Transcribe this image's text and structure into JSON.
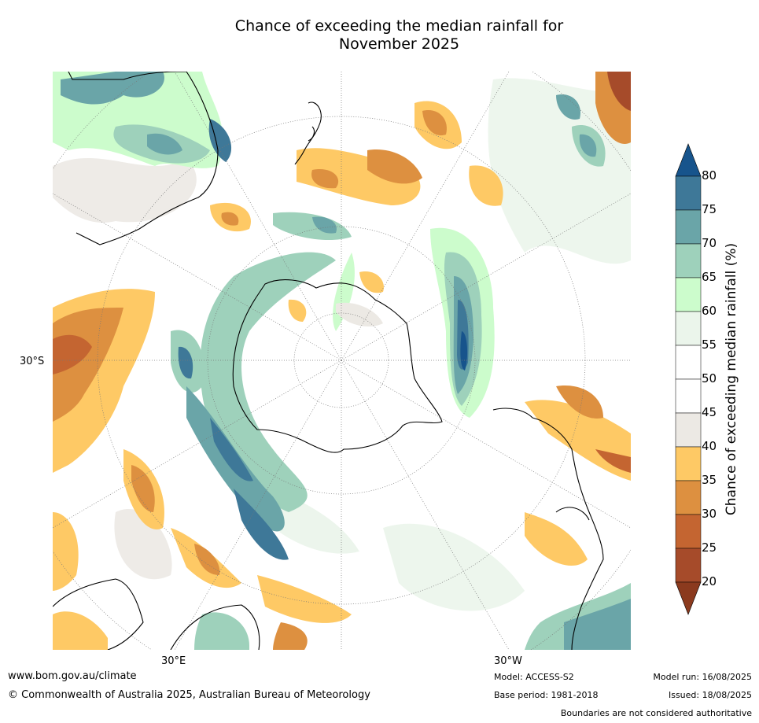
{
  "title_line1": "Chance of exceeding the median rainfall for",
  "title_line2": "November 2025",
  "axis": {
    "lat_label": "30°S",
    "lon_label_east": "30°E",
    "lon_label_west": "30°W"
  },
  "colorbar": {
    "label": "Chance of exceeding median rainfall (%)",
    "ticks": [
      "80",
      "75",
      "70",
      "65",
      "60",
      "55",
      "50",
      "45",
      "40",
      "35",
      "30",
      "25",
      "20"
    ],
    "bins": [
      {
        "range": "75-80",
        "color": "#3e7898"
      },
      {
        "range": "70-75",
        "color": "#6aa5a8"
      },
      {
        "range": "65-70",
        "color": "#9ed1bb"
      },
      {
        "range": "60-65",
        "color": "#ccfccc"
      },
      {
        "range": "55-60",
        "color": "#ebf5eb"
      },
      {
        "range": "50-55",
        "color": "#ffffff"
      },
      {
        "range": "45-50",
        "color": "#ffffff"
      },
      {
        "range": "40-45",
        "color": "#ece9e4"
      },
      {
        "range": "35-40",
        "color": "#fec965"
      },
      {
        "range": "30-35",
        "color": "#dd9040"
      },
      {
        "range": "25-30",
        "color": "#c46531"
      },
      {
        "range": "20-25",
        "color": "#a64b2a"
      }
    ],
    "over_color": "#17548c",
    "under_color": "#8b3a1e"
  },
  "footer": {
    "website": "www.bom.gov.au/climate",
    "copyright": "© Commonwealth of Australia 2025, Australian Bureau of Meteorology",
    "model": "Model: ACCESS-S2",
    "base_period": "Base period: 1981-2018",
    "model_run": "Model run: 16/08/2025",
    "issued": "Issued: 18/08/2025",
    "disclaimer": "Boundaries are not considered authoritative"
  }
}
